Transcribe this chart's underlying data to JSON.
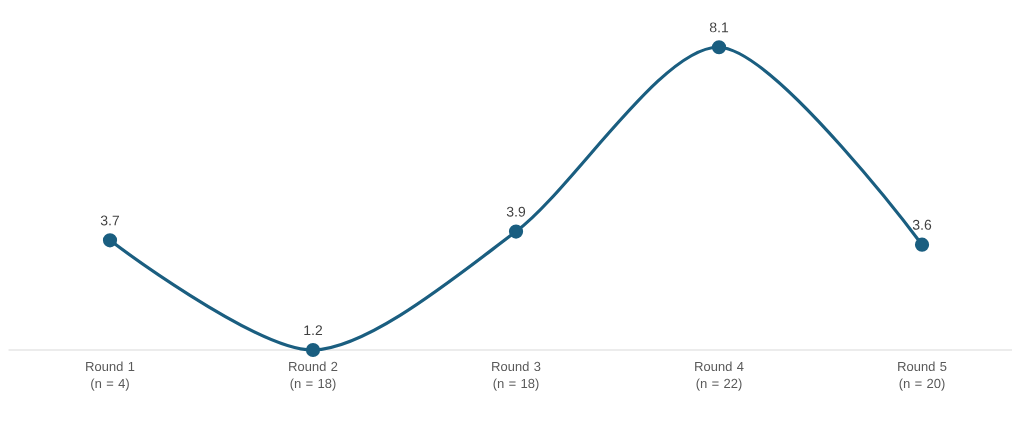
{
  "chart_data": {
    "type": "line",
    "categories": [
      "Round 1 (n = 4)",
      "Round 2 (n = 18)",
      "Round 3 (n = 18)",
      "Round 4 (n = 22)",
      "Round 5 (n = 20)"
    ],
    "series": [
      {
        "color": "#1a5e80",
        "values": [
          3.7,
          1.2,
          3.9,
          8.1,
          3.6
        ]
      }
    ],
    "data_labels": true,
    "marker": "circle",
    "line_style": "solid",
    "tick_labels": "x"
  }
}
